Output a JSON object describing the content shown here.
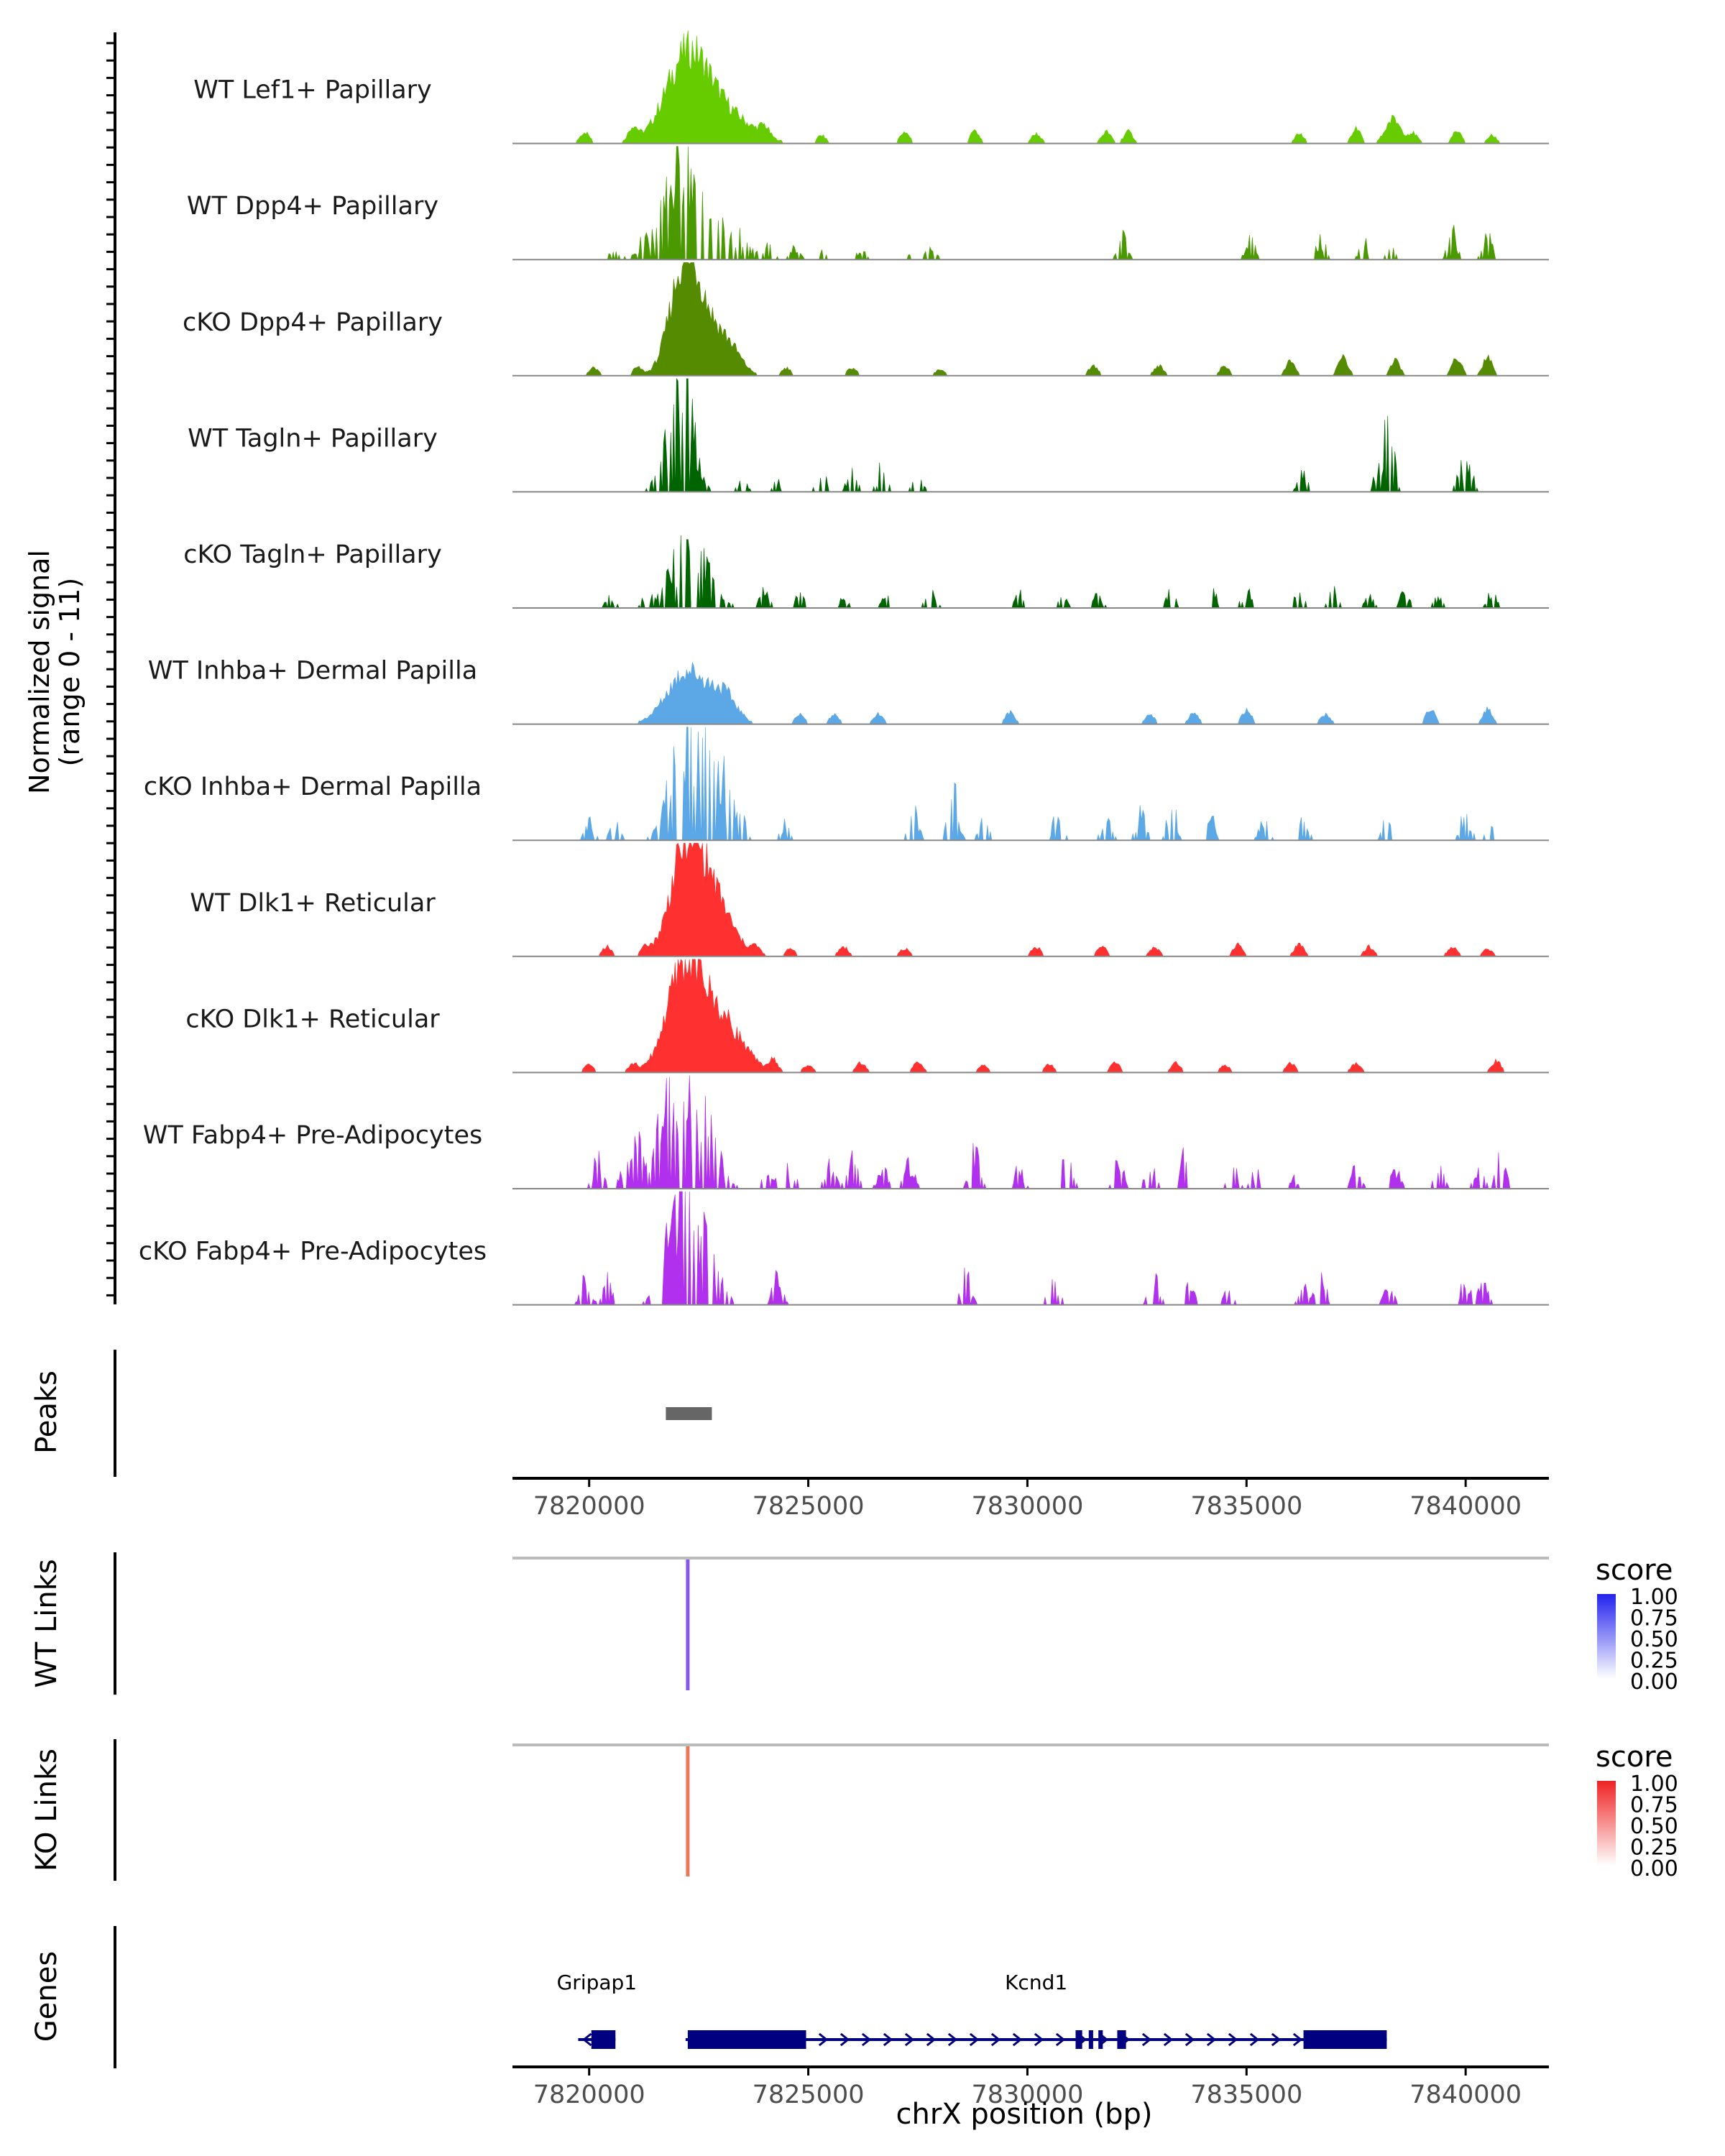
{
  "chart_data": {
    "type": "area",
    "title": "",
    "signal_axis_label": "Normalized signal",
    "signal_range_label": "(range 0 - 11)",
    "xlabel": "chrX position (bp)",
    "xlim": [
      7818250,
      7841900
    ],
    "x_ticks": [
      7820000,
      7825000,
      7830000,
      7835000,
      7840000
    ],
    "x_tick_labels": [
      "7820000",
      "7825000",
      "7830000",
      "7835000",
      "7840000"
    ],
    "signal_tracks": [
      {
        "name": "WT Lef1+ Papillary",
        "color": "#66cc00",
        "style": "smooth",
        "peaks": [
          [
            7822250,
            0.9,
            700
          ],
          [
            7823200,
            0.25,
            800
          ],
          [
            7838350,
            0.25,
            250
          ]
        ],
        "bumps": [
          [
            7819900,
            0.12
          ],
          [
            7821000,
            0.15
          ],
          [
            7824000,
            0.1
          ],
          [
            7825300,
            0.08
          ],
          [
            7827200,
            0.12
          ],
          [
            7828800,
            0.12
          ],
          [
            7830200,
            0.1
          ],
          [
            7831800,
            0.12
          ],
          [
            7832300,
            0.12
          ],
          [
            7836200,
            0.1
          ],
          [
            7837500,
            0.15
          ],
          [
            7838800,
            0.1
          ],
          [
            7839800,
            0.12
          ],
          [
            7840600,
            0.08
          ]
        ]
      },
      {
        "name": "WT Dpp4+ Papillary",
        "color": "#4a9900",
        "style": "spiky",
        "peaks": [
          [
            7822150,
            1.0,
            600
          ],
          [
            7823200,
            0.3,
            500
          ]
        ],
        "bumps": [
          [
            7820600,
            0.15
          ],
          [
            7821200,
            0.15
          ],
          [
            7824100,
            0.12
          ],
          [
            7824700,
            0.12
          ],
          [
            7825300,
            0.12
          ],
          [
            7826200,
            0.1
          ],
          [
            7827200,
            0.1
          ],
          [
            7827800,
            0.12
          ],
          [
            7832200,
            0.25
          ],
          [
            7835100,
            0.25
          ],
          [
            7836700,
            0.2
          ],
          [
            7837700,
            0.18
          ],
          [
            7838300,
            0.12
          ],
          [
            7839700,
            0.28
          ],
          [
            7840500,
            0.25
          ]
        ]
      },
      {
        "name": "cKO Dpp4+ Papillary",
        "color": "#558b00",
        "style": "smooth",
        "peaks": [
          [
            7822150,
            1.0,
            450
          ],
          [
            7822600,
            0.5,
            500
          ],
          [
            7823200,
            0.25,
            400
          ]
        ],
        "bumps": [
          [
            7820100,
            0.08
          ],
          [
            7821100,
            0.08
          ],
          [
            7824500,
            0.08
          ],
          [
            7826000,
            0.08
          ],
          [
            7828000,
            0.06
          ],
          [
            7831500,
            0.1
          ],
          [
            7833000,
            0.1
          ],
          [
            7834500,
            0.1
          ],
          [
            7836000,
            0.15
          ],
          [
            7837200,
            0.2
          ],
          [
            7838400,
            0.15
          ],
          [
            7839800,
            0.18
          ],
          [
            7840500,
            0.2
          ]
        ]
      },
      {
        "name": "WT Tagln+ Papillary",
        "color": "#006400",
        "style": "spiky",
        "peaks": [
          [
            7822200,
            1.0,
            300
          ],
          [
            7821900,
            0.55,
            350
          ]
        ],
        "bumps": [
          [
            7823500,
            0.12
          ],
          [
            7824300,
            0.1
          ],
          [
            7825300,
            0.22
          ],
          [
            7826000,
            0.2
          ],
          [
            7826700,
            0.28
          ],
          [
            7827500,
            0.2
          ],
          [
            7836300,
            0.22
          ],
          [
            7838250,
            0.72
          ],
          [
            7838000,
            0.2
          ],
          [
            7839900,
            0.22
          ],
          [
            7840100,
            0.22
          ]
        ]
      },
      {
        "name": "cKO Tagln+ Papillary",
        "color": "#006400",
        "style": "spiky",
        "peaks": [
          [
            7822300,
            0.7,
            550
          ]
        ],
        "bumps": [
          [
            7820500,
            0.12
          ],
          [
            7821300,
            0.15
          ],
          [
            7824000,
            0.2
          ],
          [
            7824800,
            0.15
          ],
          [
            7825800,
            0.1
          ],
          [
            7826800,
            0.12
          ],
          [
            7827800,
            0.2
          ],
          [
            7829800,
            0.15
          ],
          [
            7830800,
            0.12
          ],
          [
            7831600,
            0.12
          ],
          [
            7833300,
            0.2
          ],
          [
            7834200,
            0.25
          ],
          [
            7835000,
            0.18
          ],
          [
            7836200,
            0.15
          ],
          [
            7837000,
            0.18
          ],
          [
            7837800,
            0.12
          ],
          [
            7838600,
            0.15
          ],
          [
            7839400,
            0.12
          ],
          [
            7840600,
            0.15
          ]
        ]
      },
      {
        "name": "WT Inhba+ Dermal Papilla",
        "color": "#5ca7e6",
        "style": "smooth",
        "peaks": [
          [
            7822250,
            0.55,
            650
          ],
          [
            7823100,
            0.25,
            400
          ]
        ],
        "bumps": [
          [
            7824800,
            0.1
          ],
          [
            7825600,
            0.1
          ],
          [
            7826600,
            0.1
          ],
          [
            7829600,
            0.12
          ],
          [
            7832800,
            0.1
          ],
          [
            7833800,
            0.12
          ],
          [
            7835000,
            0.15
          ],
          [
            7836800,
            0.1
          ],
          [
            7839200,
            0.15
          ],
          [
            7840500,
            0.15
          ]
        ]
      },
      {
        "name": "cKO Inhba+ Dermal Papilla",
        "color": "#5ca7e6",
        "style": "spiky",
        "peaks": [
          [
            7822100,
            1.0,
            400
          ],
          [
            7822600,
            0.85,
            400
          ],
          [
            7823200,
            0.5,
            350
          ]
        ],
        "bumps": [
          [
            7820000,
            0.2
          ],
          [
            7820600,
            0.2
          ],
          [
            7824500,
            0.2
          ],
          [
            7827400,
            0.3
          ],
          [
            7828300,
            0.55
          ],
          [
            7829000,
            0.2
          ],
          [
            7830700,
            0.3
          ],
          [
            7831800,
            0.2
          ],
          [
            7832600,
            0.3
          ],
          [
            7833300,
            0.35
          ],
          [
            7834200,
            0.2
          ],
          [
            7835400,
            0.2
          ],
          [
            7836300,
            0.2
          ],
          [
            7838200,
            0.2
          ],
          [
            7840000,
            0.3
          ],
          [
            7840600,
            0.2
          ]
        ]
      },
      {
        "name": "WT Dlk1+ Reticular",
        "color": "#ff3030",
        "style": "smooth",
        "peaks": [
          [
            7822200,
            1.0,
            500
          ],
          [
            7822800,
            0.6,
            600
          ]
        ],
        "bumps": [
          [
            7820400,
            0.1
          ],
          [
            7821300,
            0.08
          ],
          [
            7823800,
            0.08
          ],
          [
            7824600,
            0.08
          ],
          [
            7825800,
            0.1
          ],
          [
            7827200,
            0.08
          ],
          [
            7830200,
            0.1
          ],
          [
            7831700,
            0.1
          ],
          [
            7832900,
            0.1
          ],
          [
            7834800,
            0.12
          ],
          [
            7836200,
            0.12
          ],
          [
            7837800,
            0.1
          ],
          [
            7839700,
            0.1
          ],
          [
            7840500,
            0.08
          ]
        ]
      },
      {
        "name": "cKO Dlk1+ Reticular",
        "color": "#ff3030",
        "style": "smooth",
        "peaks": [
          [
            7822150,
            1.0,
            550
          ],
          [
            7822800,
            0.5,
            600
          ],
          [
            7823400,
            0.2,
            500
          ]
        ],
        "bumps": [
          [
            7820000,
            0.08
          ],
          [
            7821000,
            0.08
          ],
          [
            7824200,
            0.12
          ],
          [
            7825000,
            0.08
          ],
          [
            7826200,
            0.1
          ],
          [
            7827500,
            0.1
          ],
          [
            7829000,
            0.08
          ],
          [
            7830500,
            0.08
          ],
          [
            7832000,
            0.1
          ],
          [
            7833400,
            0.1
          ],
          [
            7834500,
            0.08
          ],
          [
            7836000,
            0.1
          ],
          [
            7837500,
            0.1
          ],
          [
            7840700,
            0.12
          ]
        ]
      },
      {
        "name": "WT Fabp4+ Pre-Adipocytes",
        "color": "#b030ee",
        "style": "spiky",
        "peaks": [
          [
            7822150,
            0.9,
            500
          ],
          [
            7821600,
            0.45,
            300
          ],
          [
            7822800,
            0.45,
            350
          ]
        ],
        "bumps": [
          [
            7820200,
            0.3
          ],
          [
            7820800,
            0.2
          ],
          [
            7821100,
            0.45
          ],
          [
            7824100,
            0.25
          ],
          [
            7824600,
            0.25
          ],
          [
            7825500,
            0.25
          ],
          [
            7826000,
            0.35
          ],
          [
            7826700,
            0.2
          ],
          [
            7827300,
            0.3
          ],
          [
            7828800,
            0.4
          ],
          [
            7829800,
            0.2
          ],
          [
            7830900,
            0.4
          ],
          [
            7832100,
            0.35
          ],
          [
            7832800,
            0.3
          ],
          [
            7833600,
            0.35
          ],
          [
            7834700,
            0.2
          ],
          [
            7835200,
            0.2
          ],
          [
            7836000,
            0.15
          ],
          [
            7837500,
            0.25
          ],
          [
            7838400,
            0.2
          ],
          [
            7839400,
            0.25
          ],
          [
            7840300,
            0.2
          ],
          [
            7840800,
            0.4
          ]
        ]
      },
      {
        "name": "cKO Fabp4+ Pre-Adipocytes",
        "color": "#b030ee",
        "style": "spiky",
        "peaks": [
          [
            7822000,
            1.0,
            400
          ],
          [
            7822600,
            0.6,
            450
          ]
        ],
        "bumps": [
          [
            7819900,
            0.25
          ],
          [
            7820400,
            0.25
          ],
          [
            7824300,
            0.3
          ],
          [
            7828600,
            0.3
          ],
          [
            7830600,
            0.35
          ],
          [
            7832900,
            0.35
          ],
          [
            7833700,
            0.2
          ],
          [
            7834600,
            0.15
          ],
          [
            7836300,
            0.25
          ],
          [
            7836700,
            0.3
          ],
          [
            7838250,
            0.2
          ],
          [
            7840000,
            0.3
          ],
          [
            7840400,
            0.2
          ]
        ]
      }
    ],
    "peaks_track": {
      "label": "Peaks",
      "color": "#666666",
      "regions": [
        [
          7821750,
          7822800
        ]
      ]
    },
    "link_tracks": [
      {
        "label": "WT Links",
        "color": "#8855ee",
        "link_position": 7822250,
        "score": 0.65
      },
      {
        "label": "KO Links",
        "color": "#ee7755",
        "link_position": 7822250,
        "score": 0.7
      }
    ],
    "legends": [
      {
        "title": "score",
        "low_color": "#ffffff",
        "high_color": "#2222ee",
        "labels": [
          "1.00",
          "0.75",
          "0.50",
          "0.25",
          "0.00"
        ]
      },
      {
        "title": "score",
        "low_color": "#ffffff",
        "high_color": "#ee2222",
        "labels": [
          "1.00",
          "0.75",
          "0.50",
          "0.25",
          "0.00"
        ]
      }
    ],
    "genes_track": {
      "label": "Genes",
      "color": "#000080",
      "genes": [
        {
          "name": "Gripap1",
          "start": 7819750,
          "end": 7820600,
          "strand": "-",
          "exons": [
            [
              7820050,
              7820600
            ]
          ]
        },
        {
          "name": "Kcnd1",
          "start": 7822200,
          "end": 7838200,
          "strand": "+",
          "exons": [
            [
              7822250,
              7824950
            ],
            [
              7831100,
              7831250
            ],
            [
              7831400,
              7831500
            ],
            [
              7831620,
              7831720
            ],
            [
              7832050,
              7832250
            ],
            [
              7836300,
              7838200
            ]
          ]
        }
      ]
    }
  }
}
